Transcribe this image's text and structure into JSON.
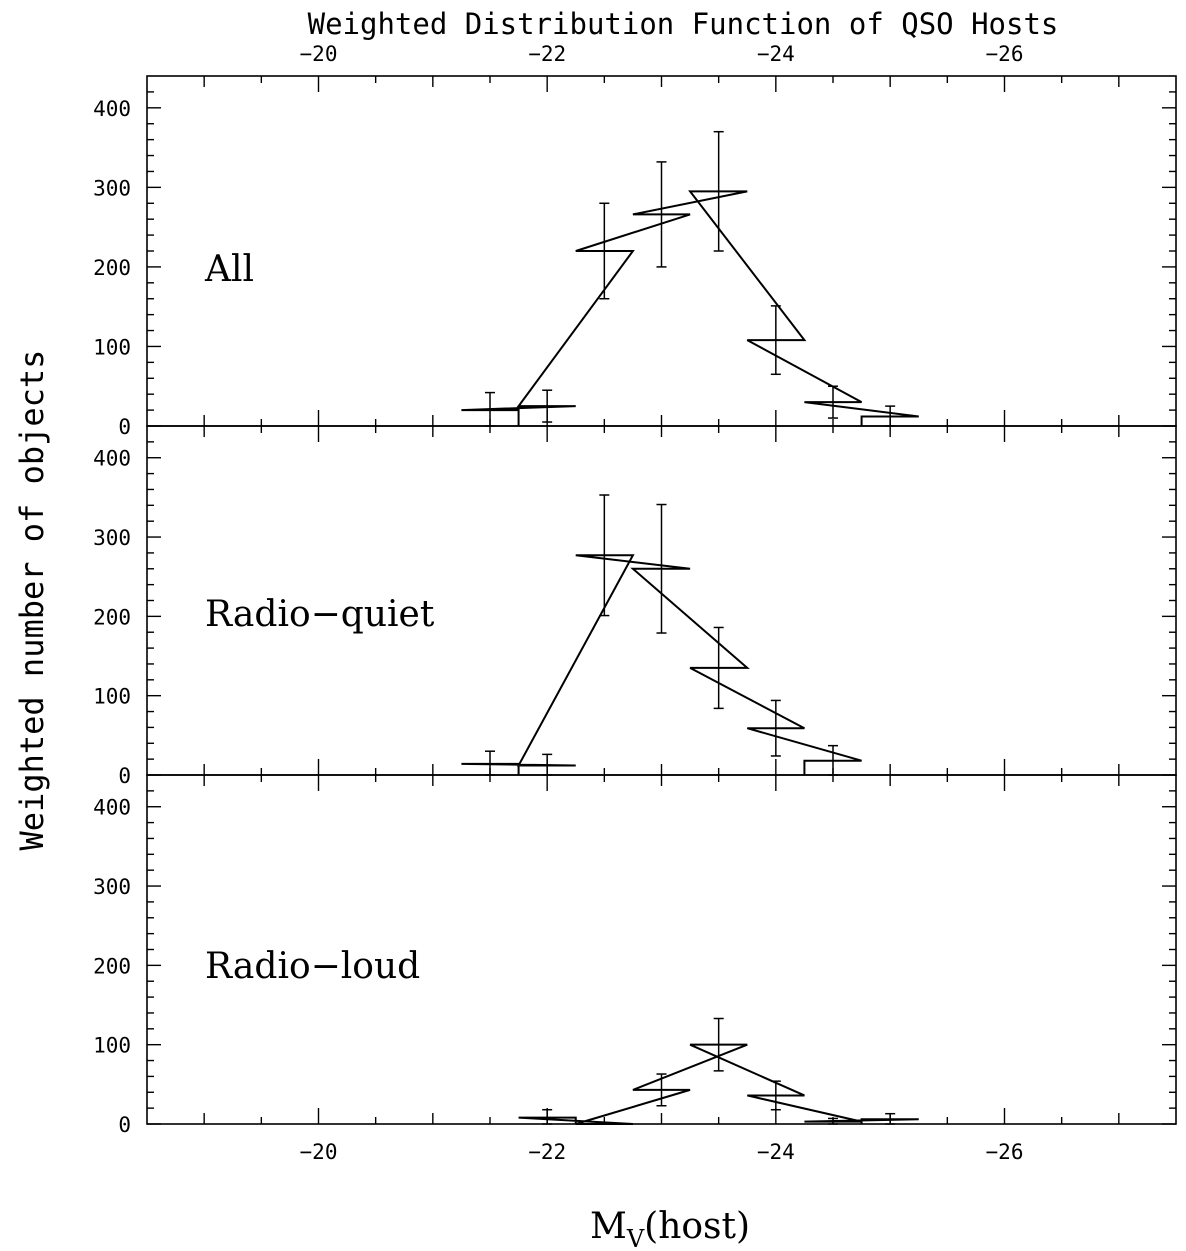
{
  "chart_data": {
    "type": "histogram",
    "title": "Weighted Distribution Function of QSO Hosts",
    "xlabel": "M",
    "xlabel_sub": "V",
    "xlabel_suffix": "(host)",
    "ylabel": "Weighted number of objects",
    "xlim": [
      -18.5,
      -27.5
    ],
    "ylim": [
      0,
      440
    ],
    "x_ticks": [
      -20,
      -22,
      -24,
      -26
    ],
    "x_tick_labels": [
      "−20",
      "−22",
      "−24",
      "−26"
    ],
    "y_ticks": [
      0,
      100,
      200,
      300,
      400
    ],
    "y_tick_labels": [
      "0",
      "100",
      "200",
      "300",
      "400"
    ],
    "bin_width": 0.5,
    "panels": [
      {
        "label": "All",
        "bins": [
          {
            "center": -21.5,
            "value": 20,
            "err": 22
          },
          {
            "center": -22.0,
            "value": 25,
            "err": 20
          },
          {
            "center": -22.5,
            "value": 220,
            "err": 60
          },
          {
            "center": -23.0,
            "value": 266,
            "err": 66
          },
          {
            "center": -23.5,
            "value": 295,
            "err": 75
          },
          {
            "center": -24.0,
            "value": 108,
            "err": 43
          },
          {
            "center": -24.5,
            "value": 30,
            "err": 20
          },
          {
            "center": -25.0,
            "value": 12,
            "err": 13
          }
        ]
      },
      {
        "label": "Radio−quiet",
        "bins": [
          {
            "center": -21.5,
            "value": 14,
            "err": 16
          },
          {
            "center": -22.0,
            "value": 12,
            "err": 14
          },
          {
            "center": -22.5,
            "value": 277,
            "err": 76
          },
          {
            "center": -23.0,
            "value": 260,
            "err": 81
          },
          {
            "center": -23.5,
            "value": 135,
            "err": 51
          },
          {
            "center": -24.0,
            "value": 59,
            "err": 35
          },
          {
            "center": -24.5,
            "value": 18,
            "err": 19
          }
        ]
      },
      {
        "label": "Radio−loud",
        "bins": [
          {
            "center": -22.0,
            "value": 8,
            "err": 10
          },
          {
            "center": -22.5,
            "value": 0,
            "err": 0
          },
          {
            "center": -23.0,
            "value": 43,
            "err": 20
          },
          {
            "center": -23.5,
            "value": 100,
            "err": 33
          },
          {
            "center": -24.0,
            "value": 36,
            "err": 18
          },
          {
            "center": -24.5,
            "value": 3,
            "err": 4
          },
          {
            "center": -25.0,
            "value": 6,
            "err": 7
          }
        ]
      }
    ]
  }
}
